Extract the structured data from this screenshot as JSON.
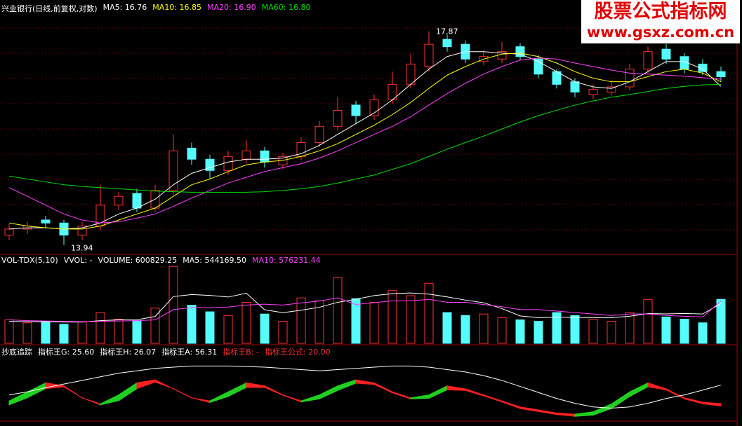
{
  "chart_data": [
    {
      "type": "candlestick",
      "title": "兴业银行(日线,前复权,对数)",
      "log_scale": true,
      "ylim": [
        13.8,
        18.2
      ],
      "up_color": "#ff3232",
      "down_color": "#54fcfc",
      "open": [
        14.1,
        14.2,
        14.35,
        14.3,
        14.1,
        14.25,
        14.6,
        14.8,
        14.55,
        14.85,
        15.6,
        15.4,
        15.2,
        15.4,
        15.55,
        15.3,
        15.45,
        15.7,
        16.0,
        16.4,
        16.2,
        16.5,
        16.8,
        17.15,
        17.7,
        17.6,
        17.25,
        17.3,
        17.55,
        17.3,
        17.05,
        16.85,
        16.6,
        16.65,
        16.75,
        17.1,
        17.5,
        17.35,
        17.2,
        17.05
      ],
      "high": [
        14.28,
        14.32,
        14.42,
        14.35,
        14.32,
        14.95,
        14.82,
        14.88,
        14.95,
        15.85,
        15.7,
        15.48,
        15.55,
        15.75,
        15.62,
        15.52,
        15.8,
        16.1,
        16.55,
        16.48,
        16.6,
        17.05,
        17.4,
        17.87,
        17.8,
        17.68,
        17.48,
        17.65,
        17.62,
        17.38,
        17.1,
        16.92,
        16.8,
        16.88,
        17.2,
        17.55,
        17.6,
        17.42,
        17.3,
        17.15
      ],
      "low": [
        14.02,
        14.12,
        14.22,
        13.94,
        14.02,
        14.18,
        14.52,
        14.48,
        14.48,
        14.78,
        15.3,
        15.05,
        15.12,
        15.32,
        15.25,
        15.22,
        15.38,
        15.62,
        15.92,
        16.05,
        16.12,
        16.42,
        16.72,
        17.05,
        17.45,
        17.22,
        17.18,
        17.22,
        17.28,
        16.92,
        16.72,
        16.55,
        16.52,
        16.58,
        16.68,
        17.02,
        17.2,
        17.02,
        16.98,
        16.85
      ],
      "close": [
        14.2,
        14.25,
        14.3,
        14.1,
        14.25,
        14.6,
        14.75,
        14.55,
        14.85,
        15.55,
        15.4,
        15.2,
        15.45,
        15.55,
        15.35,
        15.45,
        15.7,
        16.0,
        16.3,
        16.2,
        16.5,
        16.8,
        17.2,
        17.6,
        17.55,
        17.3,
        17.35,
        17.45,
        17.35,
        17.0,
        16.8,
        16.65,
        16.7,
        16.75,
        17.1,
        17.45,
        17.3,
        17.1,
        17.05,
        16.95
      ],
      "series": [
        {
          "legend": "MA5: 16.76",
          "color": "#ffffff",
          "values": [
            14.2,
            14.22,
            14.22,
            14.2,
            14.22,
            14.3,
            14.45,
            14.55,
            14.7,
            14.95,
            15.15,
            15.25,
            15.35,
            15.4,
            15.4,
            15.42,
            15.5,
            15.65,
            15.85,
            16.05,
            16.25,
            16.5,
            16.8,
            17.1,
            17.35,
            17.45,
            17.45,
            17.42,
            17.4,
            17.25,
            17.05,
            16.85,
            16.75,
            16.72,
            16.85,
            17.05,
            17.25,
            17.25,
            17.1,
            16.76
          ]
        },
        {
          "legend": "MA10: 16.85",
          "color": "#ffff00",
          "values": [
            14.3,
            14.25,
            14.22,
            14.2,
            14.2,
            14.25,
            14.35,
            14.45,
            14.55,
            14.75,
            14.95,
            15.05,
            15.18,
            15.3,
            15.35,
            15.38,
            15.45,
            15.55,
            15.68,
            15.85,
            16.02,
            16.22,
            16.45,
            16.72,
            16.98,
            17.15,
            17.3,
            17.4,
            17.42,
            17.35,
            17.22,
            17.05,
            16.92,
            16.85,
            16.85,
            16.95,
            17.05,
            17.1,
            17.02,
            16.85
          ]
        },
        {
          "legend": "MA20: 16.90",
          "color": "#ff40ff",
          "values": [
            14.9,
            14.75,
            14.6,
            14.45,
            14.35,
            14.3,
            14.32,
            14.38,
            14.45,
            14.58,
            14.72,
            14.85,
            14.98,
            15.08,
            15.18,
            15.25,
            15.32,
            15.42,
            15.55,
            15.7,
            15.85,
            16.0,
            16.18,
            16.4,
            16.62,
            16.82,
            17.0,
            17.15,
            17.28,
            17.32,
            17.3,
            17.22,
            17.15,
            17.08,
            17.02,
            17.0,
            16.98,
            16.96,
            16.93,
            16.9
          ]
        },
        {
          "legend": "MA60: 16.80",
          "color": "#00e000",
          "values": [
            15.1,
            15.05,
            15.0,
            14.95,
            14.92,
            14.9,
            14.88,
            14.86,
            14.84,
            14.83,
            14.82,
            14.82,
            14.82,
            14.82,
            14.83,
            14.85,
            14.88,
            14.92,
            14.98,
            15.05,
            15.12,
            15.22,
            15.32,
            15.45,
            15.58,
            15.7,
            15.82,
            15.95,
            16.08,
            16.2,
            16.3,
            16.4,
            16.48,
            16.55,
            16.6,
            16.66,
            16.72,
            16.76,
            16.79,
            16.8
          ]
        }
      ]
    },
    {
      "type": "volume",
      "title": "VOL-TDX(5,10)",
      "extra_legends": [
        {
          "text": "VVOL: -",
          "color": "#ffffff"
        },
        {
          "text": "VOLUME: 600829.25",
          "color": "#ffffff"
        }
      ],
      "ylim": [
        0,
        1100000
      ],
      "values": [
        320000,
        280000,
        300000,
        260000,
        290000,
        420000,
        330000,
        310000,
        480000,
        1050000,
        520000,
        430000,
        380000,
        560000,
        400000,
        300000,
        620000,
        580000,
        900000,
        610000,
        560000,
        720000,
        650000,
        820000,
        420000,
        380000,
        400000,
        350000,
        320000,
        300000,
        420000,
        380000,
        330000,
        300000,
        420000,
        600000,
        360000,
        330000,
        280000,
        600829.25
      ],
      "series": [
        {
          "legend": "MA5: 544169.50",
          "color": "#ffffff",
          "values": [
            300000,
            295000,
            295000,
            290000,
            290000,
            310000,
            320000,
            322000,
            366000,
            638000,
            666000,
            654000,
            632000,
            684000,
            458000,
            418000,
            452000,
            492000,
            560000,
            602000,
            652000,
            678000,
            688000,
            672000,
            634000,
            590000,
            554000,
            474000,
            374000,
            350000,
            358000,
            354000,
            350000,
            350000,
            370000,
            406000,
            402000,
            408000,
            400000,
            544169.5
          ]
        },
        {
          "legend": "MA10: 576231.44",
          "color": "#ff40ff",
          "values": [
            320000,
            310000,
            305000,
            300000,
            295000,
            300000,
            305000,
            310000,
            320000,
            460000,
            488000,
            487000,
            495000,
            522000,
            534000,
            522000,
            551000,
            578000,
            620000,
            530000,
            555000,
            580000,
            580000,
            600000,
            560000,
            560000,
            530000,
            500000,
            460000,
            460000,
            440000,
            420000,
            400000,
            380000,
            400000,
            400000,
            380000,
            370000,
            360000,
            576231.44
          ]
        }
      ]
    },
    {
      "type": "ribbon",
      "title": "抄底追踪",
      "ylim": [
        0,
        100
      ],
      "rise_color": "#ff2020",
      "fall_color": "#20d020",
      "series": [
        {
          "legend": "指标王G: 25.60",
          "color": "#ffffff",
          "values": [
            30,
            45,
            60,
            55,
            35,
            25,
            40,
            60,
            65,
            50,
            35,
            30,
            45,
            60,
            55,
            40,
            30,
            40,
            55,
            65,
            60,
            45,
            35,
            40,
            55,
            50,
            40,
            30,
            20,
            15,
            10,
            8,
            12,
            25,
            45,
            60,
            50,
            35,
            28,
            25.6
          ]
        },
        {
          "legend": "指标王H: 26.07",
          "color": "#ffffff",
          "values": [
            28,
            40,
            55,
            58,
            40,
            28,
            35,
            55,
            66,
            55,
            40,
            32,
            42,
            57,
            57,
            44,
            33,
            38,
            52,
            64,
            62,
            48,
            38,
            39,
            53,
            52,
            43,
            33,
            22,
            17,
            12,
            9,
            11,
            22,
            42,
            58,
            53,
            38,
            30,
            26.07
          ]
        },
        {
          "legend": "指标王A: 56.31",
          "color": "#ffffff",
          "line": true,
          "values": [
            40,
            45,
            52,
            58,
            64,
            70,
            76,
            80,
            84,
            86,
            88,
            88,
            88,
            87,
            86,
            84,
            82,
            80,
            82,
            84,
            86,
            88,
            88,
            86,
            82,
            78,
            72,
            64,
            54,
            44,
            34,
            26,
            20,
            18,
            20,
            26,
            34,
            40,
            48,
            56.31
          ]
        }
      ],
      "extra_legends": [
        {
          "text": "指标王B: -",
          "color": "#ff3030"
        },
        {
          "text": "指标王公式: 20.00",
          "color": "#ff3030"
        }
      ]
    }
  ],
  "watermark": {
    "title": "股票公式指标网",
    "url": "www.gsxz.com.cn"
  }
}
